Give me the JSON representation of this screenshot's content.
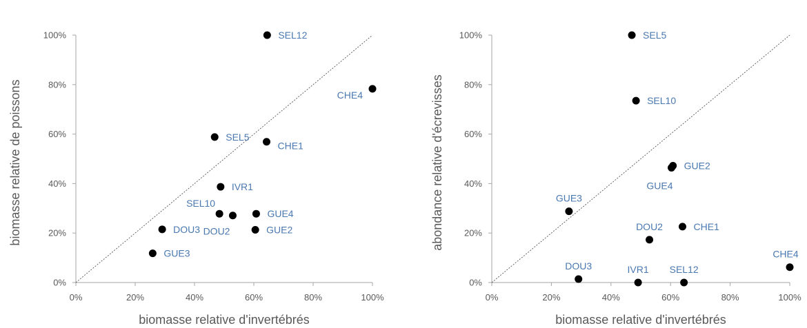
{
  "colors": {
    "marker": "#000000",
    "label": "#4a78b0",
    "axis": "#a6a6a6",
    "text": "#595959"
  },
  "chart_data": [
    {
      "type": "scatter",
      "xlabel": "biomasse relative d'invertébrés",
      "ylabel": "biomasse relative de poissons",
      "xlim": [
        0,
        100
      ],
      "ylim": [
        0,
        100
      ],
      "x_ticks": [
        "0%",
        "20%",
        "40%",
        "60%",
        "80%",
        "100%"
      ],
      "y_ticks": [
        "0%",
        "20%",
        "40%",
        "60%",
        "80%",
        "100%"
      ],
      "grid": false,
      "diagonal_reference_line": true,
      "points": [
        {
          "label": "SEL12",
          "x": 64.5,
          "y": 100,
          "label_pos": "right"
        },
        {
          "label": "CHE4",
          "x": 100,
          "y": 78.3,
          "label_pos": "below-left"
        },
        {
          "label": "SEL5",
          "x": 46.8,
          "y": 58.8,
          "label_pos": "right"
        },
        {
          "label": "CHE1",
          "x": 64.3,
          "y": 56.9,
          "label_pos": "below-right"
        },
        {
          "label": "IVR1",
          "x": 48.8,
          "y": 38.7,
          "label_pos": "right"
        },
        {
          "label": "SEL10",
          "x": 48.4,
          "y": 27.8,
          "label_pos": "above-left"
        },
        {
          "label": "DOU2",
          "x": 52.9,
          "y": 27.1,
          "label_pos": "below-left"
        },
        {
          "label": "GUE4",
          "x": 60.8,
          "y": 27.8,
          "label_pos": "right"
        },
        {
          "label": "GUE2",
          "x": 60.5,
          "y": 21.3,
          "label_pos": "right"
        },
        {
          "label": "DOU3",
          "x": 29.1,
          "y": 21.5,
          "label_pos": "right"
        },
        {
          "label": "GUE3",
          "x": 25.9,
          "y": 11.8,
          "label_pos": "right"
        }
      ]
    },
    {
      "type": "scatter",
      "xlabel": "biomasse relative d'invertébrés",
      "ylabel": "abondance relative d'écrevisses",
      "xlim": [
        0,
        100
      ],
      "ylim": [
        0,
        100
      ],
      "x_ticks": [
        "0%",
        "20%",
        "40%",
        "60%",
        "80%",
        "100%"
      ],
      "y_ticks": [
        "0%",
        "20%",
        "40%",
        "60%",
        "80%",
        "100%"
      ],
      "grid": false,
      "diagonal_reference_line": true,
      "points": [
        {
          "label": "SEL5",
          "x": 47.0,
          "y": 100,
          "label_pos": "right"
        },
        {
          "label": "SEL10",
          "x": 48.4,
          "y": 73.5,
          "label_pos": "right"
        },
        {
          "label": "GUE2",
          "x": 60.8,
          "y": 47.2,
          "label_pos": "right"
        },
        {
          "label": "GUE4",
          "x": 60.3,
          "y": 46.4,
          "label_pos": "below-left"
        },
        {
          "label": "GUE3",
          "x": 25.9,
          "y": 28.8,
          "label_pos": "above"
        },
        {
          "label": "CHE1",
          "x": 64.0,
          "y": 22.6,
          "label_pos": "right"
        },
        {
          "label": "DOU2",
          "x": 52.9,
          "y": 17.3,
          "label_pos": "above"
        },
        {
          "label": "CHE4",
          "x": 100,
          "y": 6.2,
          "label_pos": "above"
        },
        {
          "label": "DOU3",
          "x": 29.1,
          "y": 1.4,
          "label_pos": "above"
        },
        {
          "label": "IVR1",
          "x": 49.1,
          "y": 0,
          "label_pos": "above"
        },
        {
          "label": "SEL12",
          "x": 64.5,
          "y": 0,
          "label_pos": "above"
        }
      ]
    }
  ]
}
